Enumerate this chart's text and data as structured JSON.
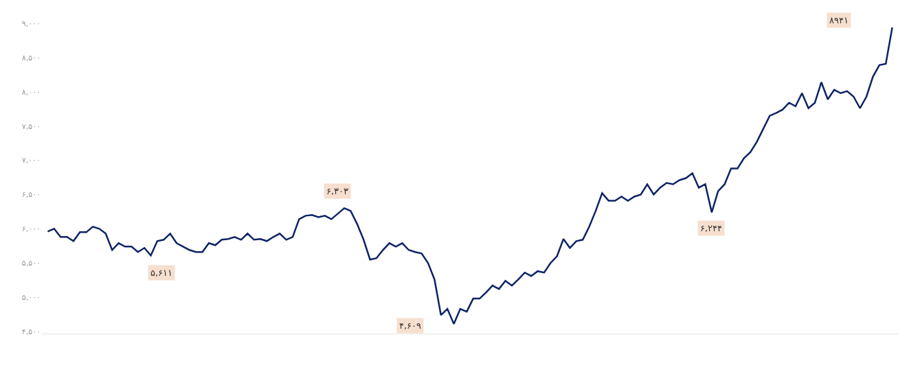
{
  "chart_data": {
    "type": "line",
    "categories": [
      null,
      null,
      null,
      null,
      null,
      null,
      null,
      null,
      null,
      null,
      null,
      null,
      null,
      null,
      null,
      null,
      null,
      null,
      null,
      null,
      null,
      null,
      null,
      null,
      null,
      null,
      null,
      null,
      null,
      null,
      null,
      null,
      null,
      null,
      null,
      null,
      null,
      null,
      null,
      null,
      null,
      null,
      null,
      null,
      null,
      null,
      null,
      null,
      null,
      null,
      null,
      null,
      null,
      null,
      null,
      null,
      null,
      null,
      null,
      null,
      null,
      null,
      null,
      null,
      null,
      null,
      null,
      null,
      null,
      null,
      null,
      null,
      null,
      null,
      null,
      null,
      null,
      null,
      null,
      null,
      null,
      null,
      null,
      null,
      null,
      null,
      null,
      null,
      null,
      null,
      null,
      null,
      null,
      null,
      null,
      null,
      null,
      null,
      null,
      null,
      null,
      null,
      null,
      null,
      null,
      null,
      null,
      null,
      null,
      null,
      null,
      null,
      null,
      null,
      null,
      null,
      null,
      null,
      null,
      null,
      null,
      null,
      null,
      null,
      null,
      null,
      null,
      null,
      null,
      null,
      null,
      null
    ],
    "series": [
      {
        "color": "#0d2366",
        "values": [
          5960,
          6000,
          5880,
          5880,
          5820,
          5950,
          5950,
          6030,
          6000,
          5930,
          5690,
          5790,
          5740,
          5740,
          5660,
          5720,
          5610,
          5820,
          5840,
          5930,
          5790,
          5740,
          5690,
          5660,
          5660,
          5790,
          5760,
          5840,
          5850,
          5880,
          5840,
          5930,
          5840,
          5850,
          5820,
          5880,
          5930,
          5840,
          5880,
          6140,
          6190,
          6200,
          6170,
          6190,
          6140,
          6220,
          6300,
          6260,
          6070,
          5840,
          5550,
          5570,
          5690,
          5790,
          5740,
          5790,
          5690,
          5660,
          5640,
          5500,
          5260,
          4740,
          4830,
          4610,
          4830,
          4790,
          4980,
          4980,
          5070,
          5170,
          5120,
          5240,
          5170,
          5260,
          5360,
          5310,
          5380,
          5360,
          5500,
          5600,
          5850,
          5720,
          5820,
          5840,
          6030,
          6260,
          6520,
          6410,
          6410,
          6470,
          6410,
          6470,
          6500,
          6650,
          6500,
          6600,
          6670,
          6650,
          6710,
          6740,
          6810,
          6600,
          6650,
          6240,
          6550,
          6650,
          6880,
          6880,
          7030,
          7120,
          7270,
          7460,
          7650,
          7690,
          7740,
          7840,
          7790,
          7980,
          7760,
          7840,
          8140,
          7890,
          8030,
          7980,
          8010,
          7930,
          7760,
          7930,
          8220,
          8390,
          8410,
          8940
        ]
      }
    ],
    "ylim": [
      4470,
      9000
    ],
    "yticks": [
      {
        "value": 4500,
        "label": "۴,۵۰۰"
      },
      {
        "value": 5000,
        "label": "۵,۰۰۰"
      },
      {
        "value": 5500,
        "label": "۵,۵۰۰"
      },
      {
        "value": 6000,
        "label": "۶,۰۰۰"
      },
      {
        "value": 6500,
        "label": "۶,۵۰۰"
      },
      {
        "value": 7000,
        "label": "۷,۰۰۰"
      },
      {
        "value": 7500,
        "label": "۷,۵۰۰"
      },
      {
        "value": 8000,
        "label": "۸,۰۰۰"
      },
      {
        "value": 8500,
        "label": "۸,۵۰۰"
      },
      {
        "value": 9000,
        "label": "۹,۰۰۰"
      }
    ],
    "annotations": [
      "۵,۶۱۱",
      "۶,۳۰۳",
      "۴,۶۰۹",
      "۶,۲۴۴",
      "۸۹۴۱"
    ],
    "marker": "none",
    "line_style": "solid"
  }
}
